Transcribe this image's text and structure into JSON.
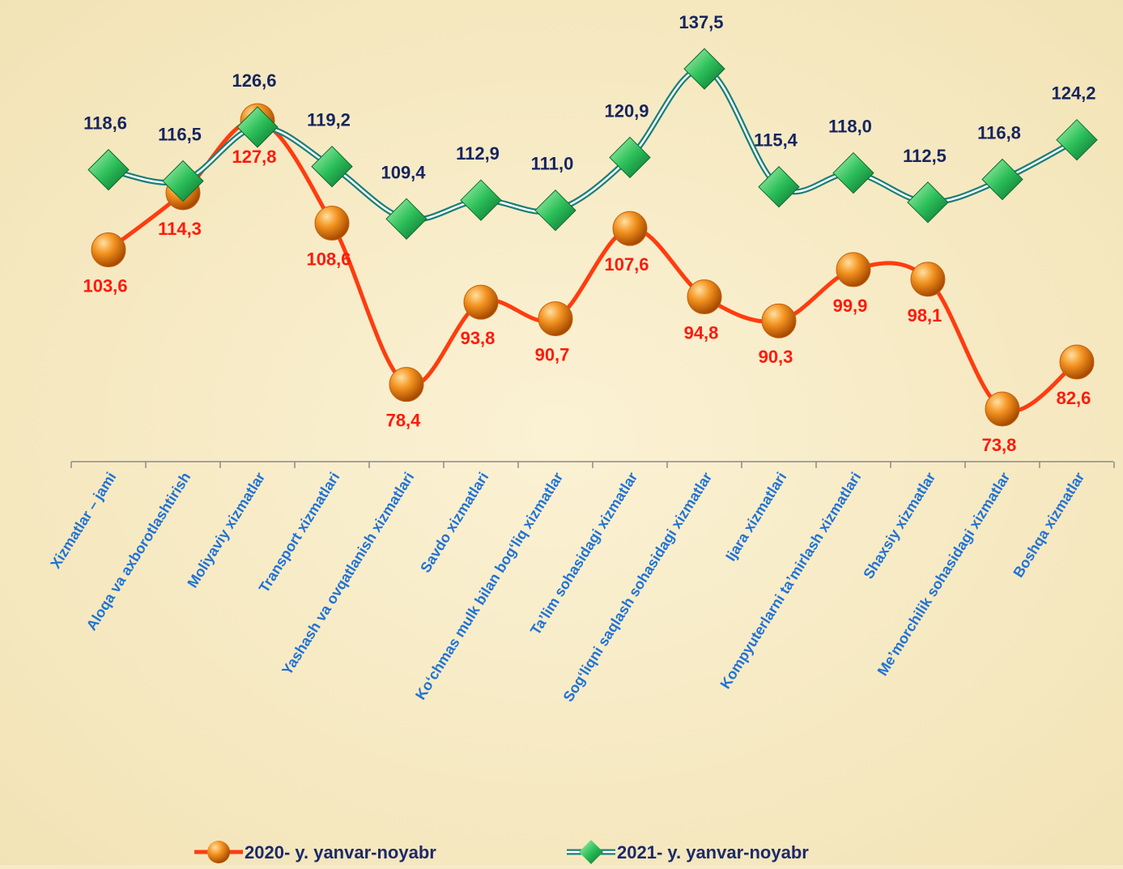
{
  "chart_data": {
    "type": "line",
    "categories": [
      "Xizmatlar – jami",
      "Aloqa va axborotlashtirish",
      "Moliyaviy xizmatlar",
      "Transport xizmatlari",
      "Yashash va ovqatlanish xizmatlari",
      "Savdo xizmatlari",
      "Ko‘chmas mulk bilan bog‘liq xizmatlar",
      "Ta’lim sohasidagi xizmatlar",
      "Sog‘liqni saqlash sohasidagi xizmatlar",
      "Ijara xizmatlari",
      "Kompyuterlarni ta’mirlash xizmatlari",
      "Shaxsiy xizmatlar",
      "Me’morchilik sohasidagi xizmatlar",
      "Boshqa xizmatlar"
    ],
    "series": [
      {
        "name": "2020- y. yanvar-noyabr",
        "color": "#ff3c0f",
        "values": [
          103.6,
          114.3,
          127.8,
          108.6,
          78.4,
          93.8,
          90.7,
          107.6,
          94.8,
          90.3,
          99.9,
          98.1,
          73.8,
          82.6
        ],
        "value_labels": [
          "103,6",
          "114,3",
          "127,8",
          "108,6",
          "78,4",
          "93,8",
          "90,7",
          "107,6",
          "94,8",
          "90,3",
          "99,9",
          "98,1",
          "73,8",
          "82,6"
        ]
      },
      {
        "name": "2021- y. yanvar-noyabr",
        "color": "#1aa060",
        "values": [
          118.6,
          116.5,
          126.6,
          119.2,
          109.4,
          112.9,
          111.0,
          120.9,
          137.5,
          115.4,
          118.0,
          112.5,
          116.8,
          124.2
        ],
        "value_labels": [
          "118,6",
          "116,5",
          "126,6",
          "119,2",
          "109,4",
          "112,9",
          "111,0",
          "120,9",
          "137,5",
          "115,4",
          "118,0",
          "112,5",
          "116,8",
          "124,2"
        ]
      }
    ]
  }
}
